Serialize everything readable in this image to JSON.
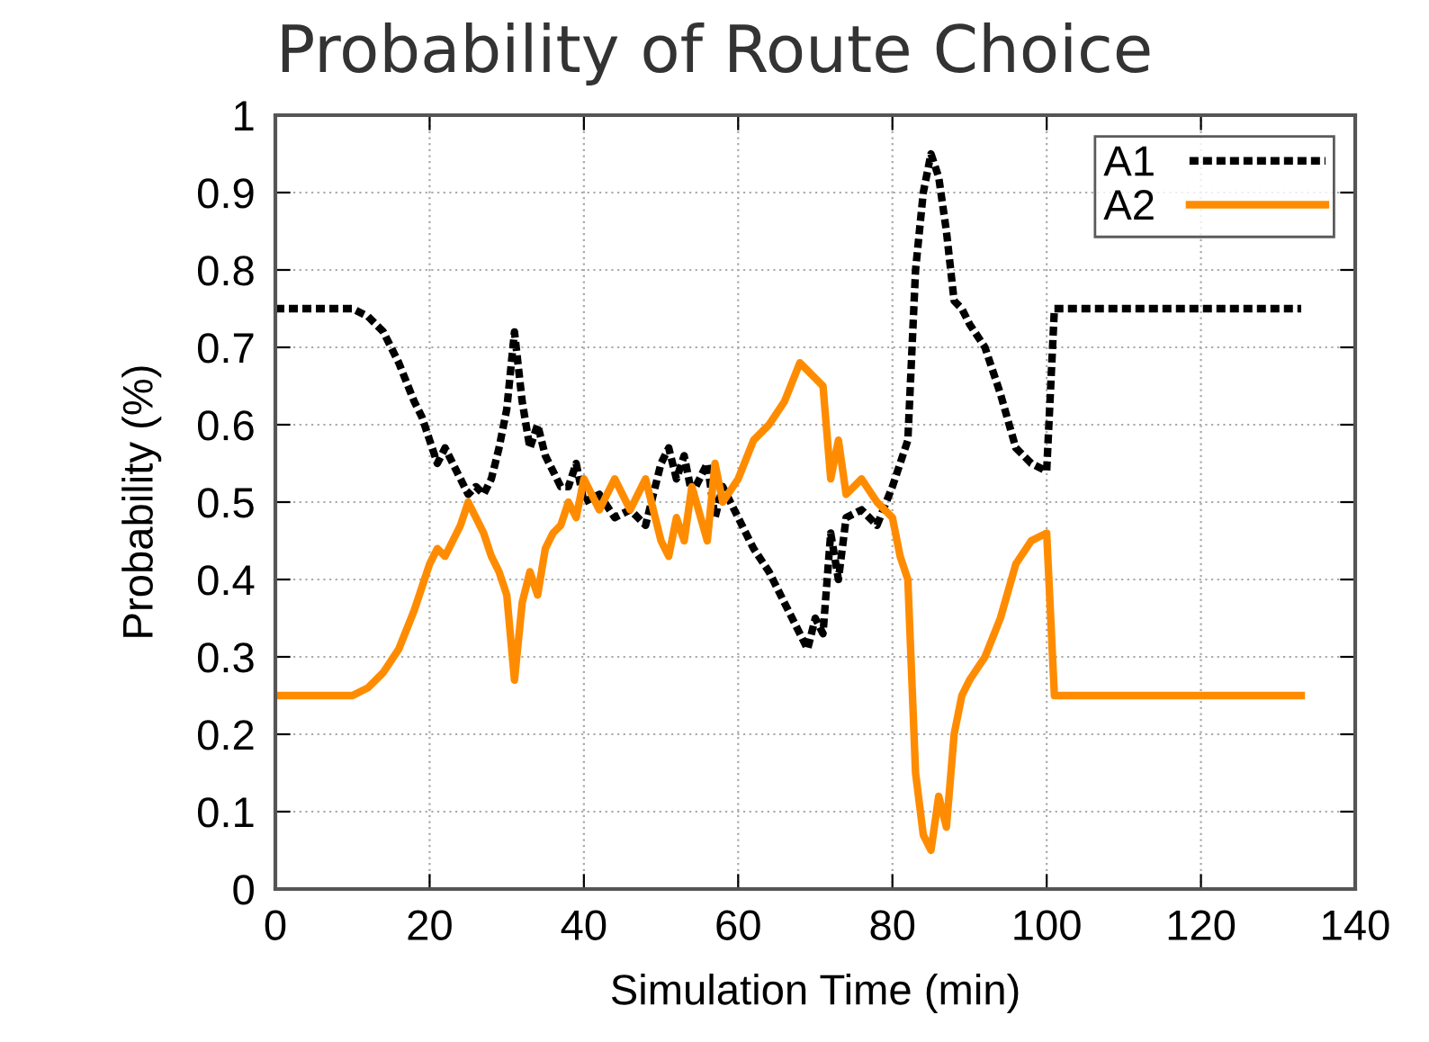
{
  "chart_data": {
    "type": "line",
    "title": "Probability of Route Choice",
    "xlabel": "Simulation Time (min)",
    "ylabel": "Probability (%)",
    "xlim": [
      0,
      140
    ],
    "xticks": [
      0,
      20,
      40,
      60,
      80,
      100,
      120,
      140
    ],
    "ylim": [
      0,
      1
    ],
    "yticks": [
      0,
      0.1,
      0.2,
      0.3,
      0.4,
      0.5,
      0.6,
      0.7,
      0.8,
      0.9,
      1
    ],
    "grid": true,
    "legend": "top right",
    "marker": "none",
    "x": [
      0,
      10,
      12,
      14,
      16,
      18,
      19,
      20,
      21,
      22,
      23,
      24,
      25,
      26,
      27,
      28,
      29,
      30,
      31,
      32,
      33,
      34,
      35,
      36,
      37,
      38,
      39,
      40,
      42,
      44,
      46,
      48,
      50,
      51,
      52,
      53,
      54,
      56,
      57,
      58,
      60,
      62,
      64,
      66,
      68,
      69,
      70,
      71,
      72,
      73,
      74,
      76,
      78,
      80,
      81,
      82,
      83,
      84,
      85,
      86,
      87,
      88,
      89,
      90,
      92,
      94,
      96,
      98,
      100,
      101,
      133
    ],
    "series": [
      {
        "name": "A1",
        "color": "#000000",
        "line_style": "dotted",
        "values": [
          0.75,
          0.75,
          0.74,
          0.72,
          0.68,
          0.63,
          0.61,
          0.58,
          0.55,
          0.57,
          0.55,
          0.53,
          0.51,
          0.52,
          0.51,
          0.53,
          0.57,
          0.62,
          0.72,
          0.63,
          0.57,
          0.6,
          0.56,
          0.54,
          0.52,
          0.52,
          0.55,
          0.5,
          0.51,
          0.48,
          0.49,
          0.47,
          0.55,
          0.57,
          0.53,
          0.56,
          0.51,
          0.55,
          0.48,
          0.52,
          0.48,
          0.44,
          0.41,
          0.37,
          0.33,
          0.31,
          0.35,
          0.33,
          0.46,
          0.4,
          0.48,
          0.49,
          0.47,
          0.52,
          0.55,
          0.58,
          0.8,
          0.9,
          0.95,
          0.92,
          0.85,
          0.76,
          0.75,
          0.73,
          0.7,
          0.64,
          0.57,
          0.55,
          0.54,
          0.75,
          0.75
        ]
      },
      {
        "name": "A2",
        "color": "#ff8c00",
        "line_style": "solid",
        "values": [
          0.25,
          0.25,
          0.26,
          0.28,
          0.31,
          0.36,
          0.39,
          0.42,
          0.44,
          0.43,
          0.45,
          0.47,
          0.5,
          0.48,
          0.46,
          0.43,
          0.41,
          0.38,
          0.27,
          0.37,
          0.41,
          0.38,
          0.44,
          0.46,
          0.47,
          0.5,
          0.48,
          0.53,
          0.49,
          0.53,
          0.49,
          0.53,
          0.45,
          0.43,
          0.48,
          0.45,
          0.52,
          0.45,
          0.55,
          0.5,
          0.53,
          0.58,
          0.6,
          0.63,
          0.68,
          0.67,
          0.66,
          0.65,
          0.53,
          0.58,
          0.51,
          0.53,
          0.5,
          0.48,
          0.43,
          0.4,
          0.15,
          0.07,
          0.05,
          0.12,
          0.08,
          0.2,
          0.25,
          0.27,
          0.3,
          0.35,
          0.42,
          0.45,
          0.46,
          0.25,
          0.25
        ]
      }
    ]
  }
}
